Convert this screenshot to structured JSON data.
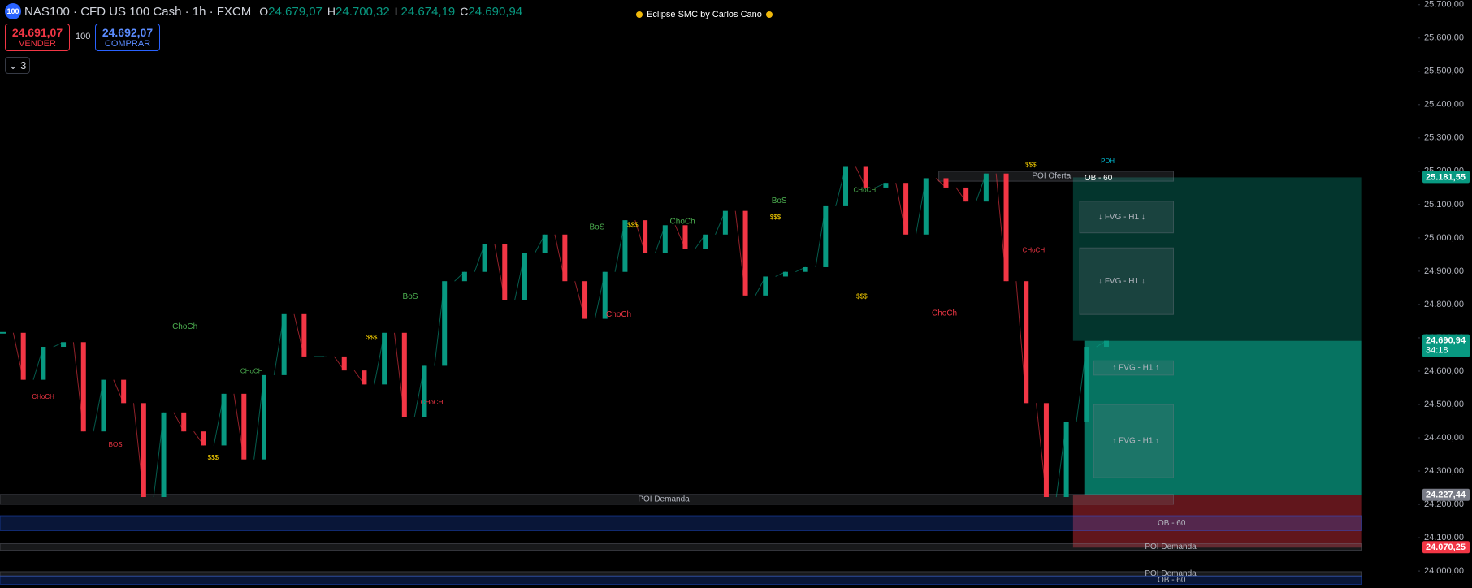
{
  "header": {
    "logo": "100",
    "symbol": "NAS100 · CFD US 100 Cash · 1h · FXCM",
    "ohlc": [
      {
        "key": "O",
        "value": "24.679,07"
      },
      {
        "key": "H",
        "value": "24.700,32"
      },
      {
        "key": "L",
        "value": "24.674,19"
      },
      {
        "key": "C",
        "value": "24.690,94"
      }
    ]
  },
  "indicator": "Eclipse SMC by Carlos Cano",
  "order_panel": {
    "sell_price": "24.691,07",
    "sell_label": "VENDER",
    "spread": "100",
    "buy_price": "24.692,07",
    "buy_label": "COMPRAR",
    "indicators_count": "3"
  },
  "chart_data": {
    "type": "candlestick",
    "up_color": "#089981",
    "down_color": "#f23645",
    "grid": false,
    "series": [
      {
        "name": "NAS100",
        "values": [
          24715,
          24574,
          24673,
          24687,
          24419,
          24574,
          24504,
          24222,
          24476,
          24419,
          24377,
          24532,
          24335,
          24588,
          24771,
          24644,
          24644,
          24602,
          24560,
          24715,
          24462,
          24616,
          24870,
          24898,
          24982,
          24813,
          24954,
          25010,
          24870,
          24757,
          24898,
          25053,
          24954,
          25038,
          24968,
          25010,
          25081,
          24827,
          24884,
          24898,
          24912,
          25095,
          25213,
          25151,
          25165,
          25010,
          25179,
          25151,
          25109,
          25193,
          24870,
          24504,
          24222,
          24447,
          24673,
          24691
        ]
      }
    ],
    "ylim": [
      23949,
      25714
    ],
    "yticks": [
      {
        "value": 24000,
        "label": "24.000,00"
      },
      {
        "value": 24100,
        "label": "24.100,00"
      },
      {
        "value": 24200,
        "label": "24.200,00"
      },
      {
        "value": 24300,
        "label": "24.300,00"
      },
      {
        "value": 24400,
        "label": "24.400,00"
      },
      {
        "value": 24500,
        "label": "24.500,00"
      },
      {
        "value": 24600,
        "label": "24.600,00"
      },
      {
        "value": 24700,
        "label": "24.700,00"
      },
      {
        "value": 24800,
        "label": "24.800,00"
      },
      {
        "value": 24900,
        "label": "24.900,00"
      },
      {
        "value": 25000,
        "label": "25.000,00"
      },
      {
        "value": 25100,
        "label": "25.100,00"
      },
      {
        "value": 25200,
        "label": "25.200,00"
      },
      {
        "value": 25300,
        "label": "25.300,00"
      },
      {
        "value": 25400,
        "label": "25.400,00"
      },
      {
        "value": 25500,
        "label": "25.500,00"
      },
      {
        "value": 25600,
        "label": "25.600,00"
      },
      {
        "value": 25700,
        "label": "25.700,00"
      }
    ],
    "price_labels": [
      {
        "value": 25181.55,
        "label": "25.181,55",
        "color": "#089981"
      },
      {
        "value": 24690.94,
        "label": "24.690,94",
        "sub": "34:18",
        "color": "#089981"
      },
      {
        "value": 24227.44,
        "label": "24.227,44",
        "color": "#787b86"
      },
      {
        "value": 24070.25,
        "label": "24.070,25",
        "color": "#f23645"
      }
    ],
    "zones": [
      {
        "label": "POI Oferta",
        "from": 25170,
        "to": 25200,
        "color": "#787b86"
      },
      {
        "label": "↓ FVG - H1 ↓",
        "from": 25015,
        "to": 25110,
        "color": "#787b86"
      },
      {
        "label": "↓ FVG - H1 ↓",
        "from": 24770,
        "to": 24970,
        "color": "#787b86"
      },
      {
        "label": "↑ FVG - H1 ↑",
        "from": 24588,
        "to": 24631,
        "color": "#787b86"
      },
      {
        "label": "↑ FVG - H1 ↑",
        "from": 24280,
        "to": 24500,
        "color": "#787b86"
      },
      {
        "label": "POI Demanda",
        "from": 24200,
        "to": 24230,
        "color": "#787b86"
      },
      {
        "label": "OB - 60",
        "from": 24121,
        "to": 24166,
        "color": "#2962ff"
      },
      {
        "label": "POI Demanda",
        "from": 24062,
        "to": 24082,
        "color": "#787b86"
      },
      {
        "label": "POI Demanda",
        "from": 23985,
        "to": 23998,
        "color": "#787b86"
      },
      {
        "label": "OB - 60",
        "from": 23960,
        "to": 23985,
        "color": "#2962ff"
      }
    ],
    "annotations": [
      {
        "text": "ChoCh",
        "color": "#4caf50"
      },
      {
        "text": "BoS",
        "color": "#4caf50"
      },
      {
        "text": "ChoCh",
        "color": "#f23645"
      },
      {
        "text": "ChoCh",
        "color": "#f23645"
      },
      {
        "text": "ChoCh",
        "color": "#4caf50"
      },
      {
        "text": "BoS",
        "color": "#4caf50"
      },
      {
        "text": "BoS",
        "color": "#4caf50"
      },
      {
        "text": "CHoCH",
        "color": "#4caf50"
      },
      {
        "text": "$$$",
        "color": "#ffd600"
      },
      {
        "text": "$$$",
        "color": "#ffd600"
      },
      {
        "text": "$$$",
        "color": "#ffd600"
      },
      {
        "text": "$$$",
        "color": "#ffd600"
      },
      {
        "text": "$$$",
        "color": "#ffd600"
      },
      {
        "text": "CHoCH",
        "color": "#f23645"
      },
      {
        "text": "CHoCH",
        "color": "#4caf50"
      },
      {
        "text": "CHoCH",
        "color": "#f23645"
      },
      {
        "text": "BOS",
        "color": "#f23645"
      },
      {
        "text": "CHoCH",
        "color": "#f23645"
      },
      {
        "text": "PDH",
        "color": "#00bcd4"
      },
      {
        "text": "$$$",
        "color": "#ffd600"
      },
      {
        "text": "OB - 60",
        "color": "#ffffff"
      }
    ]
  }
}
